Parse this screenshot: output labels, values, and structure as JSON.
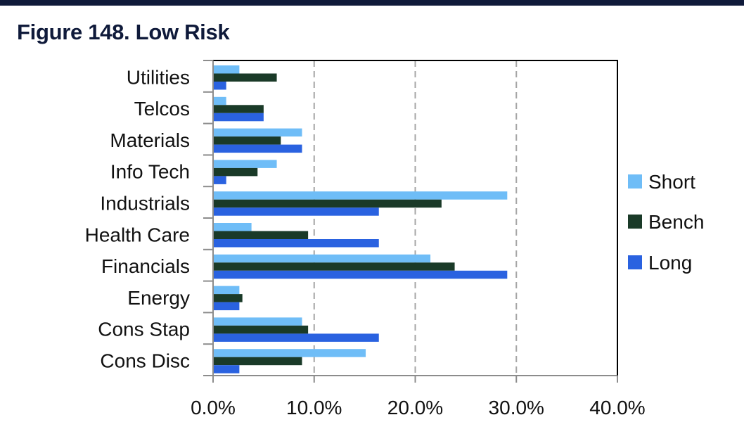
{
  "chart_data": {
    "type": "bar",
    "orientation": "horizontal",
    "title": "Figure 148. Low Risk",
    "categories": [
      "Utilities",
      "Telcos",
      "Materials",
      "Info Tech",
      "Industrials",
      "Health Care",
      "Financials",
      "Energy",
      "Cons Stap",
      "Cons Disc"
    ],
    "series": [
      {
        "name": "Short",
        "color": "#6fbdf7",
        "values": [
          2.6,
          1.3,
          8.8,
          6.3,
          29.1,
          3.8,
          21.5,
          2.6,
          8.8,
          15.1
        ]
      },
      {
        "name": "Bench",
        "color": "#1a3a28",
        "values": [
          6.3,
          5.0,
          6.7,
          4.4,
          22.6,
          9.4,
          23.9,
          2.9,
          9.4,
          8.8
        ]
      },
      {
        "name": "Long",
        "color": "#2a62e0",
        "values": [
          1.3,
          5.0,
          8.8,
          1.3,
          16.4,
          16.4,
          29.1,
          2.6,
          16.4,
          2.6
        ]
      }
    ],
    "xlim": [
      0,
      40
    ],
    "xticks": [
      0,
      10,
      20,
      30,
      40
    ],
    "xtick_labels": [
      "0.0%",
      "10.0%",
      "20.0%",
      "30.0%",
      "40.0%"
    ],
    "xlabel": "",
    "ylabel": "",
    "grid": "vertical-dashed",
    "legend_position": "right"
  }
}
